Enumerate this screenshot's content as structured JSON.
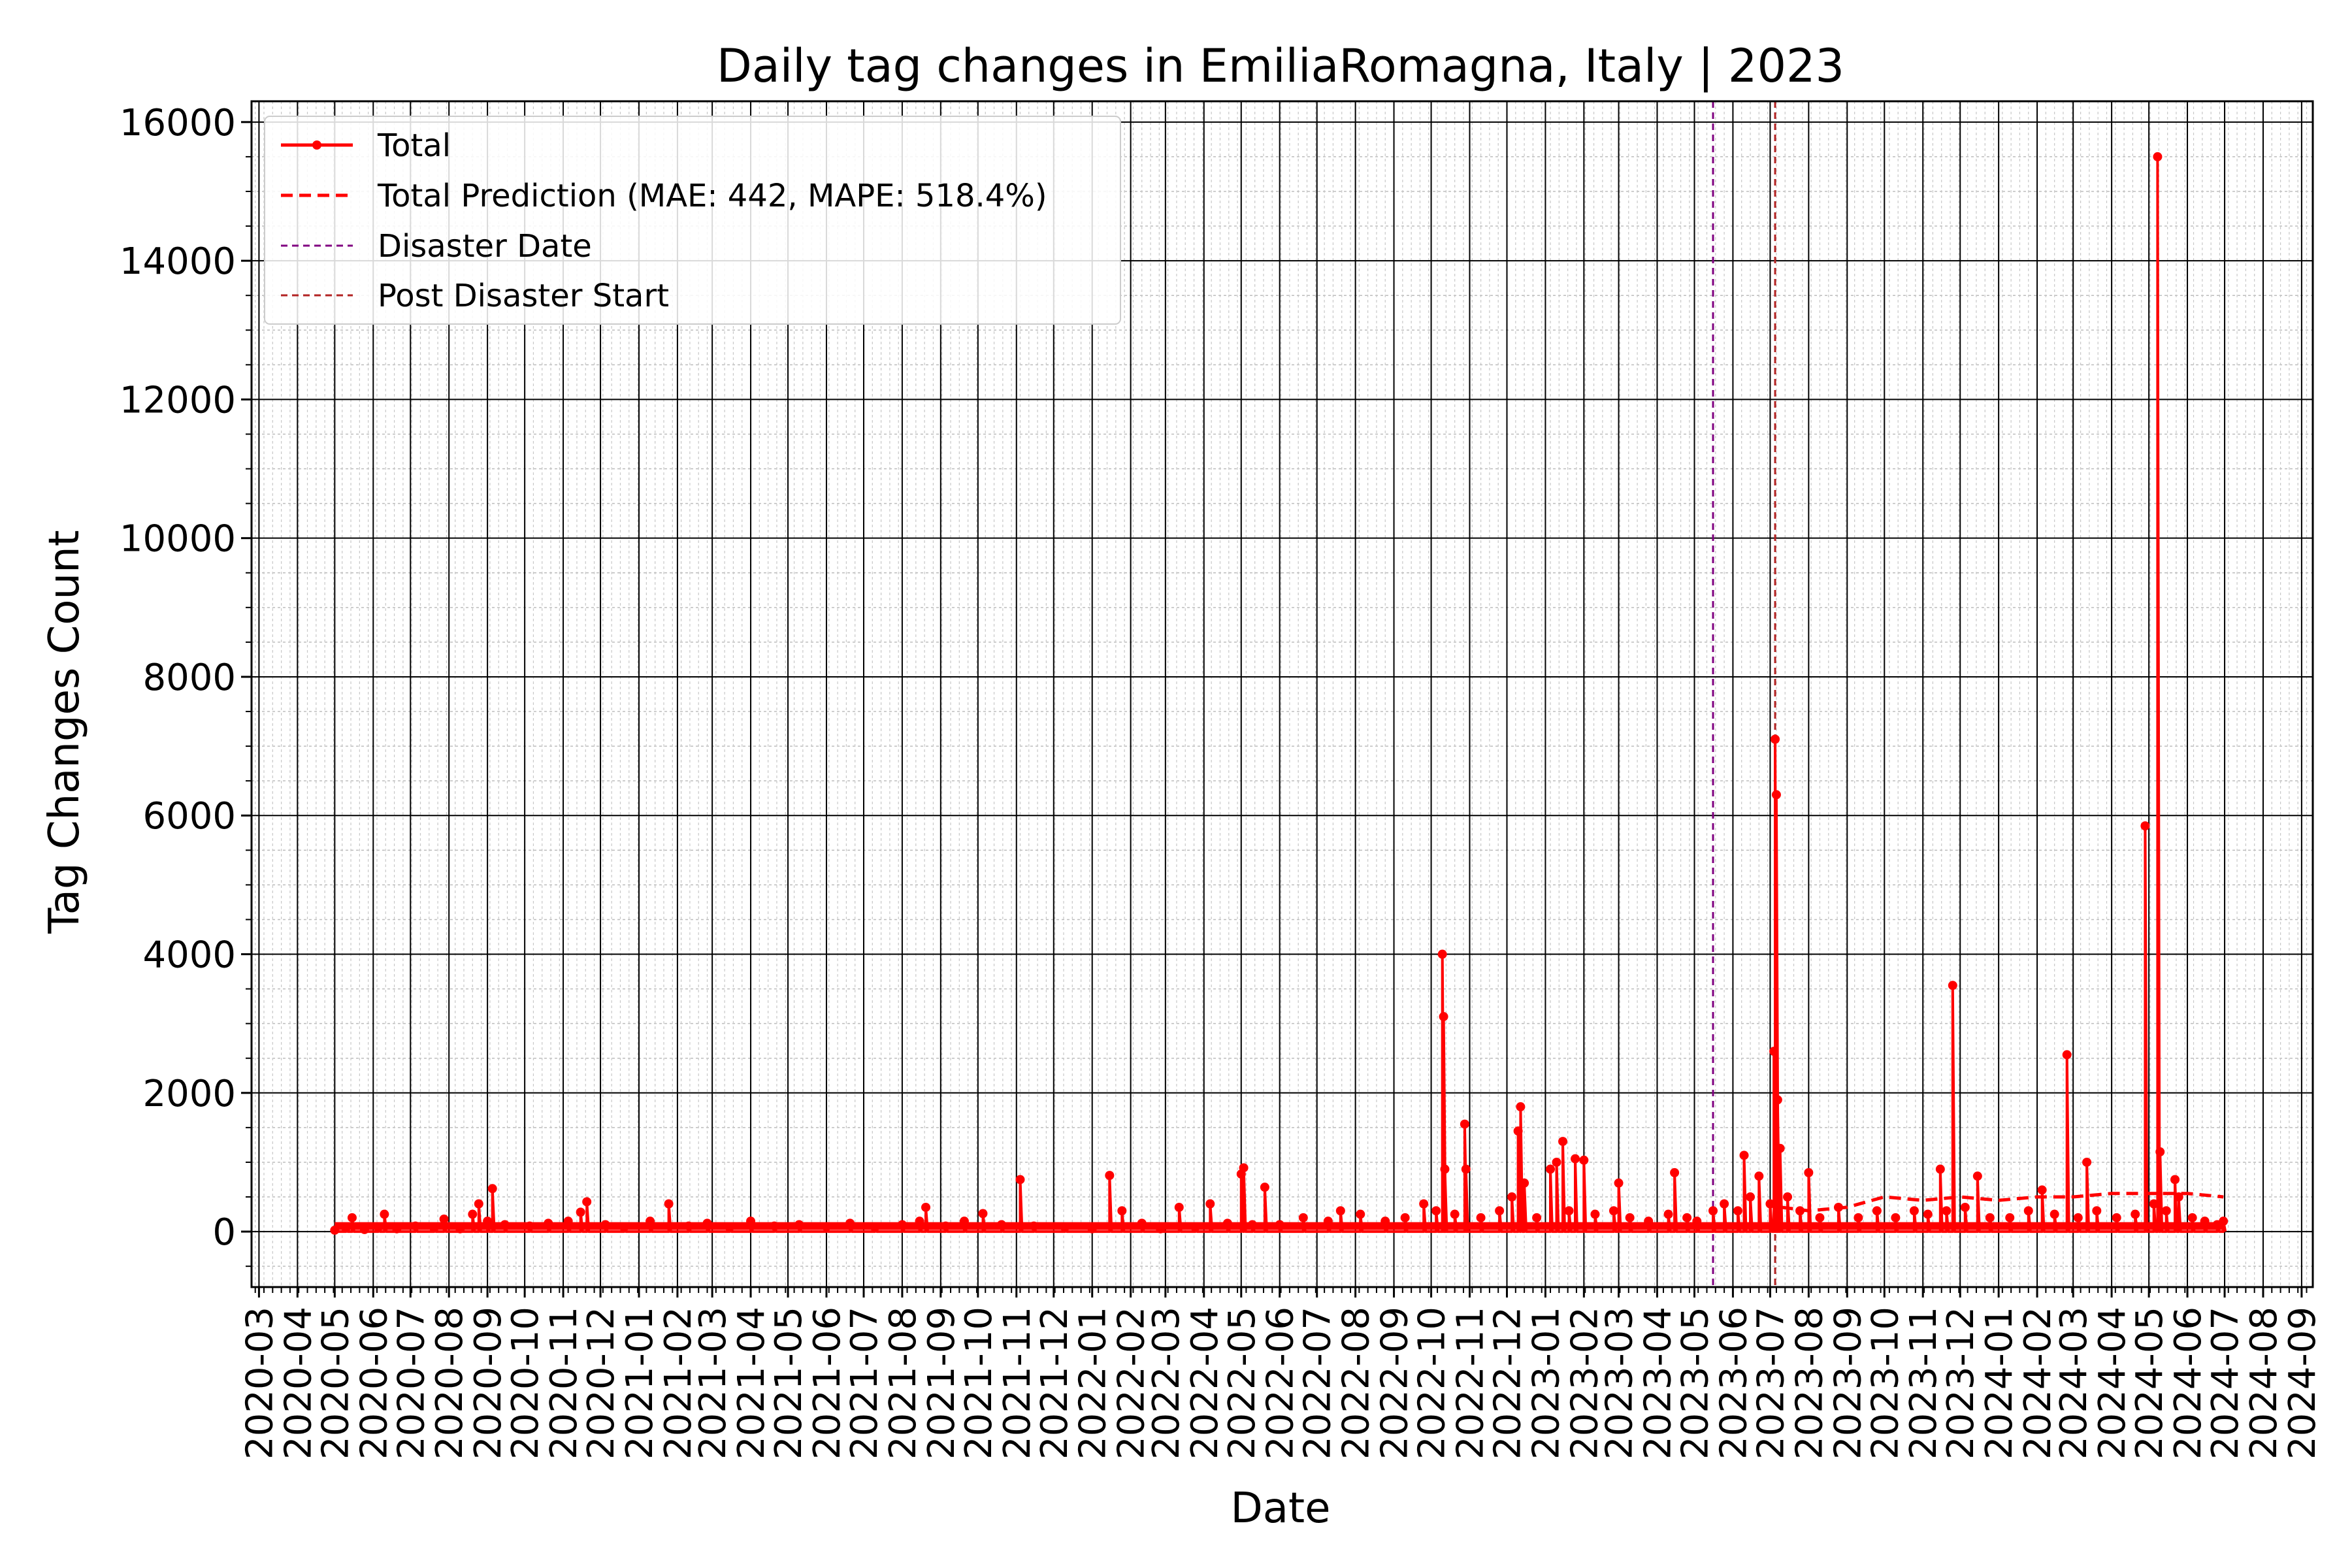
{
  "chart_data": {
    "type": "line",
    "title": "Daily tag changes in EmiliaRomagna, Italy | 2023",
    "xlabel": "Date",
    "ylabel": "Tag Changes Count",
    "xlim": [
      "2020-02-24",
      "2024-09-10"
    ],
    "ylim": [
      -800,
      16300
    ],
    "y_ticks": [
      0,
      2000,
      4000,
      6000,
      8000,
      10000,
      12000,
      14000,
      16000
    ],
    "x_ticks": [
      "2020-03",
      "2020-04",
      "2020-05",
      "2020-06",
      "2020-07",
      "2020-08",
      "2020-09",
      "2020-10",
      "2020-11",
      "2020-12",
      "2021-01",
      "2021-02",
      "2021-03",
      "2021-04",
      "2021-05",
      "2021-06",
      "2021-07",
      "2021-08",
      "2021-09",
      "2021-10",
      "2021-11",
      "2021-12",
      "2022-01",
      "2022-02",
      "2022-03",
      "2022-04",
      "2022-05",
      "2022-06",
      "2022-07",
      "2022-08",
      "2022-09",
      "2022-10",
      "2022-11",
      "2022-12",
      "2023-01",
      "2023-02",
      "2023-03",
      "2023-04",
      "2023-05",
      "2023-06",
      "2023-07",
      "2023-08",
      "2023-09",
      "2023-10",
      "2023-11",
      "2023-12",
      "2024-01",
      "2024-02",
      "2024-03",
      "2024-04",
      "2024-05",
      "2024-06",
      "2024-07",
      "2024-08",
      "2024-09"
    ],
    "grid": true,
    "legend_position": "upper-left",
    "series": [
      {
        "name": "Total",
        "color": "#ff0000",
        "style": "solid-with-markers",
        "points": [
          [
            "2020-05-01",
            20
          ],
          [
            "2020-05-10",
            50
          ],
          [
            "2020-05-15",
            200
          ],
          [
            "2020-05-25",
            30
          ],
          [
            "2020-06-05",
            60
          ],
          [
            "2020-06-10",
            250
          ],
          [
            "2020-06-20",
            40
          ],
          [
            "2020-07-05",
            80
          ],
          [
            "2020-07-20",
            50
          ],
          [
            "2020-07-28",
            180
          ],
          [
            "2020-08-10",
            40
          ],
          [
            "2020-08-20",
            250
          ],
          [
            "2020-08-25",
            400
          ],
          [
            "2020-09-01",
            150
          ],
          [
            "2020-09-05",
            620
          ],
          [
            "2020-09-15",
            100
          ],
          [
            "2020-10-05",
            80
          ],
          [
            "2020-10-20",
            120
          ],
          [
            "2020-11-05",
            150
          ],
          [
            "2020-11-15",
            280
          ],
          [
            "2020-11-20",
            430
          ],
          [
            "2020-12-05",
            100
          ],
          [
            "2020-12-20",
            60
          ],
          [
            "2021-01-10",
            150
          ],
          [
            "2021-01-25",
            400
          ],
          [
            "2021-02-10",
            80
          ],
          [
            "2021-02-25",
            120
          ],
          [
            "2021-03-15",
            60
          ],
          [
            "2021-04-01",
            150
          ],
          [
            "2021-04-20",
            80
          ],
          [
            "2021-05-10",
            100
          ],
          [
            "2021-06-01",
            70
          ],
          [
            "2021-06-20",
            120
          ],
          [
            "2021-07-10",
            60
          ],
          [
            "2021-08-01",
            100
          ],
          [
            "2021-08-15",
            150
          ],
          [
            "2021-08-20",
            350
          ],
          [
            "2021-09-05",
            80
          ],
          [
            "2021-09-20",
            150
          ],
          [
            "2021-10-05",
            260
          ],
          [
            "2021-10-20",
            100
          ],
          [
            "2021-11-04",
            750
          ],
          [
            "2021-11-15",
            80
          ],
          [
            "2021-12-10",
            60
          ],
          [
            "2022-01-01",
            40
          ],
          [
            "2022-01-15",
            810
          ],
          [
            "2022-01-25",
            300
          ],
          [
            "2022-02-10",
            120
          ],
          [
            "2022-02-25",
            40
          ],
          [
            "2022-03-12",
            350
          ],
          [
            "2022-03-25",
            60
          ],
          [
            "2022-04-06",
            400
          ],
          [
            "2022-04-20",
            120
          ],
          [
            "2022-05-01",
            830
          ],
          [
            "2022-05-03",
            920
          ],
          [
            "2022-05-10",
            100
          ],
          [
            "2022-05-20",
            640
          ],
          [
            "2022-06-01",
            100
          ],
          [
            "2022-06-20",
            200
          ],
          [
            "2022-07-10",
            150
          ],
          [
            "2022-07-20",
            300
          ],
          [
            "2022-08-05",
            250
          ],
          [
            "2022-08-25",
            150
          ],
          [
            "2022-09-10",
            200
          ],
          [
            "2022-09-25",
            400
          ],
          [
            "2022-10-05",
            300
          ],
          [
            "2022-10-10",
            4000
          ],
          [
            "2022-10-11",
            3100
          ],
          [
            "2022-10-12",
            900
          ],
          [
            "2022-10-20",
            250
          ],
          [
            "2022-10-28",
            1550
          ],
          [
            "2022-10-29",
            900
          ],
          [
            "2022-11-10",
            200
          ],
          [
            "2022-11-25",
            300
          ],
          [
            "2022-12-05",
            500
          ],
          [
            "2022-12-10",
            1450
          ],
          [
            "2022-12-12",
            1800
          ],
          [
            "2022-12-15",
            700
          ],
          [
            "2022-12-25",
            200
          ],
          [
            "2023-01-05",
            900
          ],
          [
            "2023-01-10",
            1000
          ],
          [
            "2023-01-15",
            1300
          ],
          [
            "2023-01-20",
            300
          ],
          [
            "2023-01-25",
            1050
          ],
          [
            "2023-02-01",
            1030
          ],
          [
            "2023-02-10",
            250
          ],
          [
            "2023-02-25",
            300
          ],
          [
            "2023-03-01",
            700
          ],
          [
            "2023-03-10",
            200
          ],
          [
            "2023-03-25",
            150
          ],
          [
            "2023-04-10",
            250
          ],
          [
            "2023-04-15",
            850
          ],
          [
            "2023-04-25",
            200
          ],
          [
            "2023-05-03",
            150
          ],
          [
            "2023-05-16",
            300
          ],
          [
            "2023-05-25",
            400
          ],
          [
            "2023-06-05",
            300
          ],
          [
            "2023-06-10",
            1100
          ],
          [
            "2023-06-15",
            500
          ],
          [
            "2023-06-22",
            800
          ],
          [
            "2023-07-01",
            400
          ],
          [
            "2023-07-04",
            2600
          ],
          [
            "2023-07-05",
            7100
          ],
          [
            "2023-07-06",
            6300
          ],
          [
            "2023-07-07",
            1900
          ],
          [
            "2023-07-09",
            1200
          ],
          [
            "2023-07-15",
            500
          ],
          [
            "2023-07-25",
            300
          ],
          [
            "2023-08-01",
            850
          ],
          [
            "2023-08-10",
            200
          ],
          [
            "2023-08-25",
            350
          ],
          [
            "2023-09-10",
            200
          ],
          [
            "2023-09-25",
            300
          ],
          [
            "2023-10-10",
            200
          ],
          [
            "2023-10-25",
            300
          ],
          [
            "2023-11-05",
            250
          ],
          [
            "2023-11-15",
            900
          ],
          [
            "2023-11-20",
            300
          ],
          [
            "2023-11-25",
            3550
          ],
          [
            "2023-12-05",
            350
          ],
          [
            "2023-12-15",
            800
          ],
          [
            "2023-12-25",
            200
          ],
          [
            "2024-01-10",
            200
          ],
          [
            "2024-01-25",
            300
          ],
          [
            "2024-02-05",
            600
          ],
          [
            "2024-02-15",
            250
          ],
          [
            "2024-02-25",
            2550
          ],
          [
            "2024-03-05",
            200
          ],
          [
            "2024-03-12",
            1000
          ],
          [
            "2024-03-20",
            300
          ],
          [
            "2024-04-05",
            200
          ],
          [
            "2024-04-20",
            250
          ],
          [
            "2024-04-28",
            5850
          ],
          [
            "2024-05-05",
            400
          ],
          [
            "2024-05-08",
            15500
          ],
          [
            "2024-05-10",
            1150
          ],
          [
            "2024-05-15",
            300
          ],
          [
            "2024-05-22",
            750
          ],
          [
            "2024-05-25",
            500
          ],
          [
            "2024-06-05",
            200
          ],
          [
            "2024-06-15",
            150
          ],
          [
            "2024-06-25",
            100
          ],
          [
            "2024-06-30",
            150
          ]
        ]
      },
      {
        "name": "Total Prediction (MAE: 442, MAPE: 518.4%)",
        "color": "#ff0000",
        "style": "dashed",
        "points": [
          [
            "2023-07-10",
            350
          ],
          [
            "2023-08-01",
            300
          ],
          [
            "2023-09-01",
            350
          ],
          [
            "2023-10-01",
            500
          ],
          [
            "2023-11-01",
            450
          ],
          [
            "2023-12-01",
            500
          ],
          [
            "2024-01-01",
            450
          ],
          [
            "2024-02-01",
            500
          ],
          [
            "2024-03-01",
            500
          ],
          [
            "2024-04-01",
            550
          ],
          [
            "2024-05-01",
            550
          ],
          [
            "2024-06-01",
            550
          ],
          [
            "2024-06-30",
            500
          ]
        ]
      }
    ],
    "vlines": [
      {
        "name": "Disaster Date",
        "date": "2023-05-16",
        "color": "#800080",
        "style": "dashed"
      },
      {
        "name": "Post Disaster Start",
        "date": "2023-07-05",
        "color": "#b22222",
        "style": "dashed"
      }
    ]
  }
}
